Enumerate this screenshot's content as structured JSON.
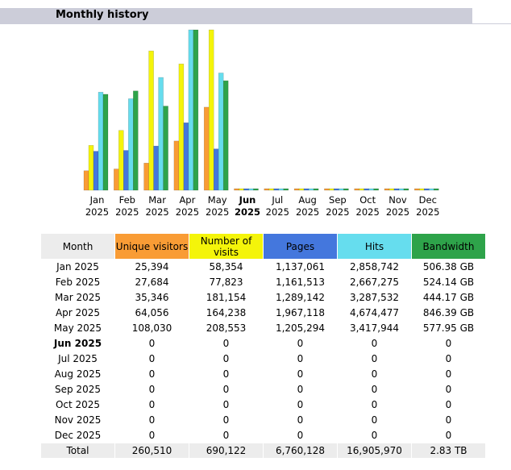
{
  "section_title": "Monthly history",
  "table": {
    "headers": {
      "month": "Month",
      "unique_visitors": "Unique visitors",
      "visits": "Number of visits",
      "pages": "Pages",
      "hits": "Hits",
      "bandwidth": "Bandwidth"
    },
    "rows": [
      {
        "month": "Jan 2025",
        "unique": "25,394",
        "visits": "58,354",
        "pages": "1,137,061",
        "hits": "2,858,742",
        "bw": "506.38 GB"
      },
      {
        "month": "Feb 2025",
        "unique": "27,684",
        "visits": "77,823",
        "pages": "1,161,513",
        "hits": "2,667,275",
        "bw": "524.14 GB"
      },
      {
        "month": "Mar 2025",
        "unique": "35,346",
        "visits": "181,154",
        "pages": "1,289,142",
        "hits": "3,287,532",
        "bw": "444.17 GB"
      },
      {
        "month": "Apr 2025",
        "unique": "64,056",
        "visits": "164,238",
        "pages": "1,967,118",
        "hits": "4,674,477",
        "bw": "846.39 GB"
      },
      {
        "month": "May 2025",
        "unique": "108,030",
        "visits": "208,553",
        "pages": "1,205,294",
        "hits": "3,417,944",
        "bw": "577.95 GB"
      },
      {
        "month": "Jun 2025",
        "unique": "0",
        "visits": "0",
        "pages": "0",
        "hits": "0",
        "bw": "0",
        "current": true
      },
      {
        "month": "Jul 2025",
        "unique": "0",
        "visits": "0",
        "pages": "0",
        "hits": "0",
        "bw": "0"
      },
      {
        "month": "Aug 2025",
        "unique": "0",
        "visits": "0",
        "pages": "0",
        "hits": "0",
        "bw": "0"
      },
      {
        "month": "Sep 2025",
        "unique": "0",
        "visits": "0",
        "pages": "0",
        "hits": "0",
        "bw": "0"
      },
      {
        "month": "Oct 2025",
        "unique": "0",
        "visits": "0",
        "pages": "0",
        "hits": "0",
        "bw": "0"
      },
      {
        "month": "Nov 2025",
        "unique": "0",
        "visits": "0",
        "pages": "0",
        "hits": "0",
        "bw": "0"
      },
      {
        "month": "Dec 2025",
        "unique": "0",
        "visits": "0",
        "pages": "0",
        "hits": "0",
        "bw": "0"
      }
    ],
    "total": {
      "month": "Total",
      "unique": "260,510",
      "visits": "690,122",
      "pages": "6,760,128",
      "hits": "16,905,970",
      "bw": "2.83 TB"
    }
  },
  "chart_data": {
    "type": "bar",
    "categories": [
      [
        "Jan",
        "2025"
      ],
      [
        "Feb",
        "2025"
      ],
      [
        "Mar",
        "2025"
      ],
      [
        "Apr",
        "2025"
      ],
      [
        "May",
        "2025"
      ],
      [
        "Jun",
        "2025"
      ],
      [
        "Jul",
        "2025"
      ],
      [
        "Aug",
        "2025"
      ],
      [
        "Sep",
        "2025"
      ],
      [
        "Oct",
        "2025"
      ],
      [
        "Nov",
        "2025"
      ],
      [
        "Dec",
        "2025"
      ]
    ],
    "current_index": 5,
    "series": [
      {
        "key": "unique",
        "color": "#f99c35",
        "values": [
          25394,
          27684,
          35346,
          64056,
          108030,
          0,
          0,
          0,
          0,
          0,
          0,
          0
        ]
      },
      {
        "key": "visits",
        "color": "#f4f40a",
        "values": [
          58354,
          77823,
          181154,
          164238,
          208553,
          0,
          0,
          0,
          0,
          0,
          0,
          0
        ]
      },
      {
        "key": "pages",
        "color": "#4477dd",
        "values": [
          1137061,
          1161513,
          1289142,
          1967118,
          1205294,
          0,
          0,
          0,
          0,
          0,
          0,
          0
        ]
      },
      {
        "key": "hits",
        "color": "#66ddee",
        "values": [
          2858742,
          2667275,
          3287532,
          4674477,
          3417944,
          0,
          0,
          0,
          0,
          0,
          0,
          0
        ]
      },
      {
        "key": "bandwidth",
        "color": "#2ea34a",
        "values": [
          506.38,
          524.14,
          444.17,
          846.39,
          577.95,
          0,
          0,
          0,
          0,
          0,
          0,
          0
        ]
      }
    ],
    "scale_groups": [
      [
        "unique",
        "visits"
      ],
      [
        "pages",
        "hits"
      ],
      [
        "bandwidth"
      ]
    ]
  }
}
